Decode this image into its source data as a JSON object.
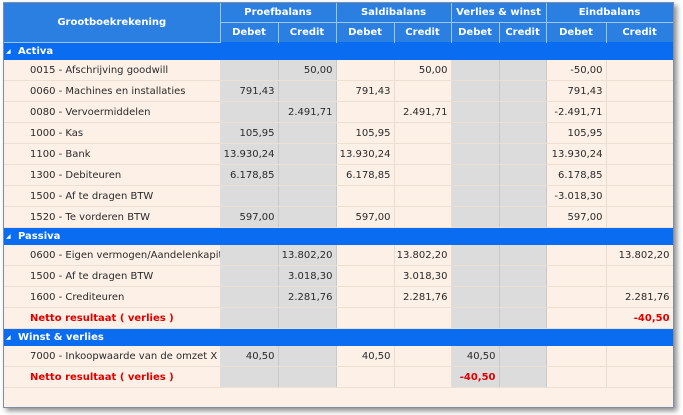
{
  "header": {
    "account_col": "Grootboekrekening",
    "groups": [
      "Proefbalans",
      "Saldibalans",
      "Verlies & winst",
      "Eindbalans"
    ],
    "debet": "Debet",
    "credit": "Credit"
  },
  "sections": [
    {
      "title": "Activa",
      "rows": [
        {
          "label": "0015 - Afschrijving goodwill",
          "pb_d": "",
          "pb_c": "50,00",
          "sb_d": "",
          "sb_c": "50,00",
          "vw_d": "",
          "vw_c": "",
          "eb_d": "-50,00",
          "eb_c": ""
        },
        {
          "label": "0060 - Machines en installaties",
          "pb_d": "791,43",
          "pb_c": "",
          "sb_d": "791,43",
          "sb_c": "",
          "vw_d": "",
          "vw_c": "",
          "eb_d": "791,43",
          "eb_c": ""
        },
        {
          "label": "0080 - Vervoermiddelen",
          "pb_d": "",
          "pb_c": "2.491,71",
          "sb_d": "",
          "sb_c": "2.491,71",
          "vw_d": "",
          "vw_c": "",
          "eb_d": "-2.491,71",
          "eb_c": ""
        },
        {
          "label": "1000 - Kas",
          "pb_d": "105,95",
          "pb_c": "",
          "sb_d": "105,95",
          "sb_c": "",
          "vw_d": "",
          "vw_c": "",
          "eb_d": "105,95",
          "eb_c": ""
        },
        {
          "label": "1100 - Bank",
          "pb_d": "13.930,24",
          "pb_c": "",
          "sb_d": "13.930,24",
          "sb_c": "",
          "vw_d": "",
          "vw_c": "",
          "eb_d": "13.930,24",
          "eb_c": ""
        },
        {
          "label": "1300 - Debiteuren",
          "pb_d": "6.178,85",
          "pb_c": "",
          "sb_d": "6.178,85",
          "sb_c": "",
          "vw_d": "",
          "vw_c": "",
          "eb_d": "6.178,85",
          "eb_c": ""
        },
        {
          "label": "1500 - Af te dragen BTW",
          "pb_d": "",
          "pb_c": "",
          "sb_d": "",
          "sb_c": "",
          "vw_d": "",
          "vw_c": "",
          "eb_d": "-3.018,30",
          "eb_c": ""
        },
        {
          "label": "1520 - Te vorderen BTW",
          "pb_d": "597,00",
          "pb_c": "",
          "sb_d": "597,00",
          "sb_c": "",
          "vw_d": "",
          "vw_c": "",
          "eb_d": "597,00",
          "eb_c": ""
        }
      ]
    },
    {
      "title": "Passiva",
      "rows": [
        {
          "label": "0600 - Eigen vermogen/Aandelenkapitaal",
          "pb_d": "",
          "pb_c": "13.802,20",
          "sb_d": "",
          "sb_c": "13.802,20",
          "vw_d": "",
          "vw_c": "",
          "eb_d": "",
          "eb_c": "13.802,20"
        },
        {
          "label": "1500 - Af te dragen BTW",
          "pb_d": "",
          "pb_c": "3.018,30",
          "sb_d": "",
          "sb_c": "3.018,30",
          "vw_d": "",
          "vw_c": "",
          "eb_d": "",
          "eb_c": ""
        },
        {
          "label": "1600 - Crediteuren",
          "pb_d": "",
          "pb_c": "2.281,76",
          "sb_d": "",
          "sb_c": "2.281,76",
          "vw_d": "",
          "vw_c": "",
          "eb_d": "",
          "eb_c": "2.281,76"
        }
      ],
      "netto": {
        "label": "Netto resultaat ( verlies )",
        "vw_d": "",
        "eb_c": "-40,50"
      }
    },
    {
      "title": "Winst & verlies",
      "rows": [
        {
          "label": "7000 - Inkoopwaarde van de omzet X",
          "pb_d": "40,50",
          "pb_c": "",
          "sb_d": "40,50",
          "sb_c": "",
          "vw_d": "40,50",
          "vw_c": "",
          "eb_d": "",
          "eb_c": ""
        }
      ],
      "netto": {
        "label": "Netto resultaat ( verlies )",
        "vw_d": "-40,50",
        "eb_c": ""
      }
    }
  ],
  "colors": {
    "header": "#2a7fe0",
    "group": "#0a6cf0",
    "row_bg": "#fdf1e7",
    "grey_cell": "#dcdcdc",
    "negative": "#e10000"
  },
  "icons": {
    "collapse": "triangle-collapse-icon"
  }
}
